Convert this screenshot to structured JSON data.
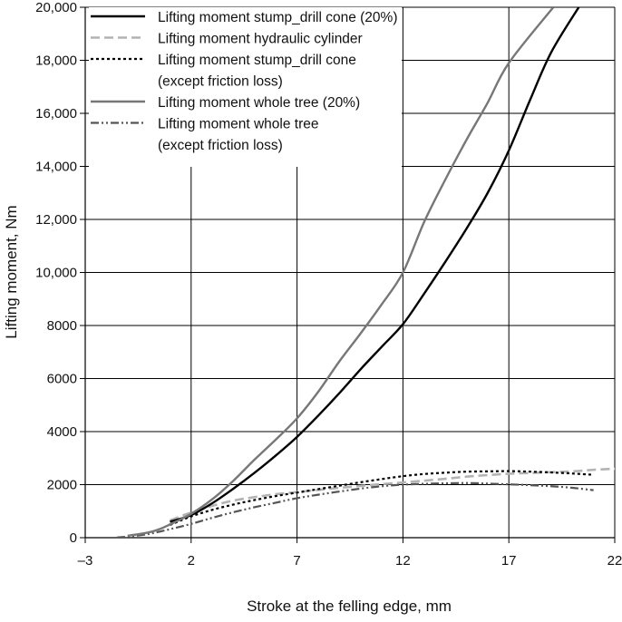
{
  "chart_data": {
    "type": "line",
    "xlabel": "Stroke at the felling edge, mm",
    "ylabel": "Lifting moment, Nm",
    "xlim": [
      -3,
      22
    ],
    "ylim": [
      0,
      20000
    ],
    "x_ticks": [
      -3,
      2,
      7,
      12,
      17,
      22
    ],
    "x_tick_labels": [
      "–3",
      "2",
      "7",
      "12",
      "17",
      "22"
    ],
    "y_ticks": [
      0,
      2000,
      4000,
      6000,
      8000,
      10000,
      12000,
      14000,
      16000,
      18000,
      20000
    ],
    "y_tick_labels": [
      "0",
      "2000",
      "4000",
      "6000",
      "8000",
      "10,000",
      "12,000",
      "14,000",
      "16,000",
      "18,000",
      "20,000"
    ],
    "grid": true,
    "legend_position": "top-left",
    "series": [
      {
        "name": "Lifting moment stump_drill cone (20%)",
        "legend_lines": [
          "Lifting moment stump_drill cone (20%)"
        ],
        "color": "#000000",
        "dash": "solid",
        "points": [
          [
            1,
            600
          ],
          [
            2,
            850
          ],
          [
            3,
            1300
          ],
          [
            4,
            1850
          ],
          [
            5,
            2450
          ],
          [
            6,
            3100
          ],
          [
            7,
            3800
          ],
          [
            8,
            4600
          ],
          [
            9,
            5450
          ],
          [
            10,
            6350
          ],
          [
            11,
            7200
          ],
          [
            12,
            8050
          ],
          [
            13,
            9200
          ],
          [
            14,
            10400
          ],
          [
            15,
            11650
          ],
          [
            16,
            13000
          ],
          [
            17,
            14600
          ],
          [
            18,
            16500
          ],
          [
            19,
            18300
          ],
          [
            20.3,
            20000
          ]
        ]
      },
      {
        "name": "Lifting moment hydraulic cylinder",
        "legend_lines": [
          "Lifting moment hydraulic cylinder"
        ],
        "color": "#b3b3b3",
        "dash": "long-dash",
        "points": [
          [
            1,
            650
          ],
          [
            2,
            950
          ],
          [
            3,
            1200
          ],
          [
            4,
            1400
          ],
          [
            5,
            1530
          ],
          [
            6,
            1640
          ],
          [
            7,
            1720
          ],
          [
            8,
            1800
          ],
          [
            9,
            1880
          ],
          [
            10,
            1950
          ],
          [
            11,
            2020
          ],
          [
            12,
            2080
          ],
          [
            13,
            2150
          ],
          [
            14,
            2220
          ],
          [
            15,
            2300
          ],
          [
            16,
            2360
          ],
          [
            17,
            2410
          ],
          [
            18,
            2440
          ],
          [
            19,
            2470
          ],
          [
            20,
            2500
          ],
          [
            21,
            2560
          ],
          [
            22,
            2600
          ]
        ]
      },
      {
        "name": "Lifting moment stump_drill cone (except friction loss)",
        "legend_lines": [
          "Lifting moment stump_drill cone",
          "(except friction loss)"
        ],
        "color": "#000000",
        "dash": "dotted",
        "points": [
          [
            1,
            480
          ],
          [
            2,
            800
          ],
          [
            3,
            1050
          ],
          [
            4,
            1250
          ],
          [
            5,
            1420
          ],
          [
            6,
            1570
          ],
          [
            7,
            1700
          ],
          [
            8,
            1830
          ],
          [
            9,
            1960
          ],
          [
            10,
            2090
          ],
          [
            11,
            2210
          ],
          [
            12,
            2320
          ],
          [
            13,
            2400
          ],
          [
            14,
            2450
          ],
          [
            15,
            2490
          ],
          [
            16,
            2500
          ],
          [
            17,
            2510
          ],
          [
            18,
            2490
          ],
          [
            19,
            2460
          ],
          [
            20,
            2420
          ],
          [
            21,
            2370
          ]
        ]
      },
      {
        "name": "Lifting moment whole tree (20%)",
        "legend_lines": [
          "Lifting moment whole tree (20%)"
        ],
        "color": "#777777",
        "dash": "solid",
        "points": [
          [
            -1,
            70
          ],
          [
            0,
            200
          ],
          [
            0.5,
            320
          ],
          [
            1,
            500
          ],
          [
            2,
            900
          ],
          [
            3,
            1450
          ],
          [
            4,
            2150
          ],
          [
            5,
            2950
          ],
          [
            6,
            3700
          ],
          [
            7,
            4500
          ],
          [
            8,
            5500
          ],
          [
            9,
            6650
          ],
          [
            10,
            7700
          ],
          [
            11,
            8800
          ],
          [
            12,
            10000
          ],
          [
            13,
            11900
          ],
          [
            14,
            13500
          ],
          [
            15,
            15000
          ],
          [
            16,
            16400
          ],
          [
            17,
            17900
          ],
          [
            19.1,
            20000
          ]
        ]
      },
      {
        "name": "Lifting moment whole tree (except friction loss)",
        "legend_lines": [
          "Lifting moment whole tree",
          "(except friction loss)"
        ],
        "color": "#555555",
        "dash": "dash-dot-dot",
        "points": [
          [
            -1.5,
            10
          ],
          [
            -1,
            40
          ],
          [
            0,
            140
          ],
          [
            1,
            320
          ],
          [
            2,
            520
          ],
          [
            3,
            750
          ],
          [
            4,
            960
          ],
          [
            5,
            1150
          ],
          [
            6,
            1320
          ],
          [
            7,
            1490
          ],
          [
            8,
            1620
          ],
          [
            9,
            1740
          ],
          [
            10,
            1850
          ],
          [
            11,
            1940
          ],
          [
            12,
            2000
          ],
          [
            13,
            2030
          ],
          [
            14,
            2050
          ],
          [
            15,
            2060
          ],
          [
            16,
            2040
          ],
          [
            17,
            2010
          ],
          [
            18,
            1980
          ],
          [
            19,
            1940
          ],
          [
            20,
            1880
          ],
          [
            21,
            1790
          ]
        ]
      }
    ]
  }
}
